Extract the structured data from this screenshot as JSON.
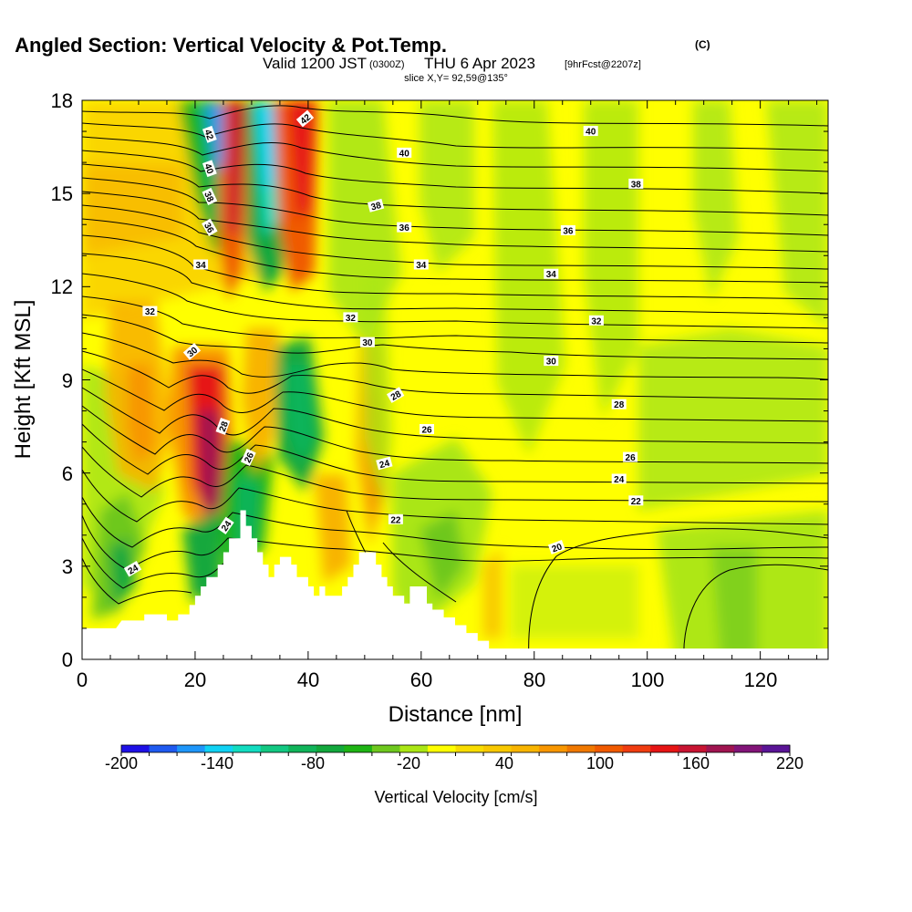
{
  "chart_data": {
    "type": "heatmap",
    "title": "Angled Section: Vertical Velocity & Pot.Temp.",
    "title_suffix": "(C)",
    "subtitle": {
      "valid_prefix": "Valid 1200 JST",
      "zulu": "(0300Z)",
      "valid_date": "THU 6 Apr 2023",
      "fcst": "[9hrFcst@2207z]"
    },
    "slice_text": "slice X,Y= 92,59@135°",
    "xlabel": "Distance [nm]",
    "ylabel": "Height [Kft MSL]",
    "xlim": [
      0,
      132
    ],
    "ylim": [
      0,
      18
    ],
    "x_ticks": [
      "0",
      "20",
      "40",
      "60",
      "80",
      "100",
      "120"
    ],
    "y_ticks": [
      "0",
      "3",
      "6",
      "9",
      "12",
      "15",
      "18"
    ],
    "colorbar": {
      "title": "Vertical Velocity [cm/s]",
      "tick_labels": [
        "-200",
        "-140",
        "-80",
        "-20",
        "40",
        "100",
        "160",
        "220"
      ],
      "colors": [
        "#1e10e6",
        "#1f5af0",
        "#1e96fa",
        "#10d2f4",
        "#12dcc0",
        "#12c882",
        "#10b45a",
        "#12a83c",
        "#1eb414",
        "#6ec81e",
        "#aae614",
        "#ffff00",
        "#f8dc00",
        "#f8c800",
        "#f8b400",
        "#f89600",
        "#f07800",
        "#f05a00",
        "#f03c10",
        "#e61414",
        "#c81432",
        "#a01450",
        "#821478",
        "#5a1496"
      ]
    },
    "terrain": [
      [
        0,
        1.0
      ],
      [
        6,
        1.0
      ],
      [
        7,
        1.25
      ],
      [
        11,
        1.25
      ],
      [
        11,
        1.45
      ],
      [
        15,
        1.45
      ],
      [
        15,
        1.25
      ],
      [
        17,
        1.25
      ],
      [
        17,
        1.45
      ],
      [
        19,
        1.45
      ],
      [
        19,
        1.75
      ],
      [
        20,
        1.75
      ],
      [
        20,
        2.05
      ],
      [
        21,
        2.05
      ],
      [
        21,
        2.35
      ],
      [
        22,
        2.35
      ],
      [
        22,
        2.65
      ],
      [
        24,
        2.65
      ],
      [
        24,
        3.05
      ],
      [
        25,
        3.05
      ],
      [
        25,
        3.45
      ],
      [
        26,
        3.45
      ],
      [
        26,
        3.9
      ],
      [
        28,
        3.9
      ],
      [
        28,
        4.8
      ],
      [
        29,
        4.8
      ],
      [
        29,
        4.3
      ],
      [
        30,
        4.3
      ],
      [
        30,
        3.9
      ],
      [
        31,
        3.9
      ],
      [
        31,
        3.45
      ],
      [
        32,
        3.45
      ],
      [
        32,
        3.05
      ],
      [
        33,
        3.05
      ],
      [
        33,
        2.65
      ],
      [
        34,
        2.65
      ],
      [
        34,
        3.05
      ],
      [
        35,
        3.05
      ],
      [
        35,
        3.3
      ],
      [
        37,
        3.3
      ],
      [
        37,
        3.05
      ],
      [
        38,
        3.05
      ],
      [
        38,
        2.65
      ],
      [
        40,
        2.65
      ],
      [
        40,
        2.35
      ],
      [
        41,
        2.35
      ],
      [
        41,
        2.05
      ],
      [
        42,
        2.05
      ],
      [
        42,
        2.35
      ],
      [
        43,
        2.35
      ],
      [
        43,
        2.05
      ],
      [
        46,
        2.05
      ],
      [
        46,
        2.35
      ],
      [
        47,
        2.35
      ],
      [
        47,
        2.65
      ],
      [
        48,
        2.65
      ],
      [
        48,
        3.05
      ],
      [
        49,
        3.05
      ],
      [
        49,
        3.45
      ],
      [
        52,
        3.45
      ],
      [
        52,
        3.05
      ],
      [
        53,
        3.05
      ],
      [
        53,
        2.65
      ],
      [
        54,
        2.65
      ],
      [
        54,
        2.35
      ],
      [
        55,
        2.35
      ],
      [
        55,
        2.05
      ],
      [
        57,
        2.05
      ],
      [
        57,
        1.8
      ],
      [
        58,
        1.8
      ],
      [
        58,
        2.35
      ],
      [
        61,
        2.35
      ],
      [
        61,
        1.8
      ],
      [
        62,
        1.8
      ],
      [
        62,
        1.6
      ],
      [
        64,
        1.6
      ],
      [
        64,
        1.35
      ],
      [
        66,
        1.35
      ],
      [
        66,
        1.1
      ],
      [
        68,
        1.1
      ],
      [
        68,
        0.85
      ],
      [
        70,
        0.85
      ],
      [
        70,
        0.6
      ],
      [
        72,
        0.6
      ],
      [
        72,
        0.35
      ],
      [
        132,
        0.35
      ]
    ],
    "contour_labels": [
      {
        "text": "42",
        "x": 22.5,
        "y": 16.9,
        "angle": 70
      },
      {
        "text": "40",
        "x": 22.5,
        "y": 15.8,
        "angle": 70
      },
      {
        "text": "38",
        "x": 22.5,
        "y": 14.9,
        "angle": 65
      },
      {
        "text": "36",
        "x": 22.5,
        "y": 13.9,
        "angle": 60
      },
      {
        "text": "34",
        "x": 21.0,
        "y": 12.7,
        "angle": 0
      },
      {
        "text": "32",
        "x": 12.0,
        "y": 11.2,
        "angle": 0
      },
      {
        "text": "30",
        "x": 19.5,
        "y": 9.9,
        "angle": -40
      },
      {
        "text": "28",
        "x": 25.0,
        "y": 7.5,
        "angle": -70
      },
      {
        "text": "26",
        "x": 29.5,
        "y": 6.5,
        "angle": -65
      },
      {
        "text": "24",
        "x": 25.5,
        "y": 4.3,
        "angle": -55
      },
      {
        "text": "24",
        "x": 9.0,
        "y": 2.9,
        "angle": -30
      },
      {
        "text": "42",
        "x": 39.5,
        "y": 17.4,
        "angle": -40
      },
      {
        "text": "40",
        "x": 57.0,
        "y": 16.3,
        "angle": 0
      },
      {
        "text": "40",
        "x": 90.0,
        "y": 17.0,
        "angle": 0
      },
      {
        "text": "38",
        "x": 52.0,
        "y": 14.6,
        "angle": -15
      },
      {
        "text": "38",
        "x": 98.0,
        "y": 15.3,
        "angle": 0
      },
      {
        "text": "36",
        "x": 57.0,
        "y": 13.9,
        "angle": 0
      },
      {
        "text": "36",
        "x": 86.0,
        "y": 13.8,
        "angle": 0
      },
      {
        "text": "34",
        "x": 60.0,
        "y": 12.7,
        "angle": 0
      },
      {
        "text": "34",
        "x": 83.0,
        "y": 12.4,
        "angle": 0
      },
      {
        "text": "32",
        "x": 47.5,
        "y": 11.0,
        "angle": 0
      },
      {
        "text": "32",
        "x": 91.0,
        "y": 10.9,
        "angle": 0
      },
      {
        "text": "30",
        "x": 50.5,
        "y": 10.2,
        "angle": 0
      },
      {
        "text": "30",
        "x": 83.0,
        "y": 9.6,
        "angle": 0
      },
      {
        "text": "28",
        "x": 55.5,
        "y": 8.5,
        "angle": -30
      },
      {
        "text": "28",
        "x": 95.0,
        "y": 8.2,
        "angle": 0
      },
      {
        "text": "26",
        "x": 61.0,
        "y": 7.4,
        "angle": 0
      },
      {
        "text": "26",
        "x": 97.0,
        "y": 6.5,
        "angle": 0
      },
      {
        "text": "24",
        "x": 53.5,
        "y": 6.3,
        "angle": -15
      },
      {
        "text": "24",
        "x": 95.0,
        "y": 5.8,
        "angle": 0
      },
      {
        "text": "22",
        "x": 55.5,
        "y": 4.5,
        "angle": 0
      },
      {
        "text": "22",
        "x": 98.0,
        "y": 5.1,
        "angle": 0
      },
      {
        "text": "20",
        "x": 84.0,
        "y": 3.6,
        "angle": -20
      }
    ]
  }
}
